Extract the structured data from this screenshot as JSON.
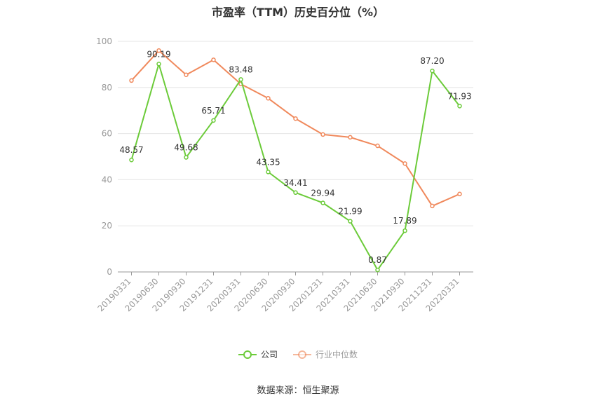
{
  "chart_data": {
    "type": "line",
    "title": "市盈率（TTM）历史百分位（%）",
    "categories": [
      "20190331",
      "20190630",
      "20190930",
      "20191231",
      "20200331",
      "20200630",
      "20200930",
      "20201231",
      "20210331",
      "20210630",
      "20210930",
      "20211231",
      "20220331"
    ],
    "series": [
      {
        "name": "公司",
        "color": "#6ccb3a",
        "values": [
          48.57,
          90.19,
          49.68,
          65.71,
          83.48,
          43.35,
          34.41,
          29.94,
          21.99,
          0.87,
          17.89,
          87.2,
          71.93
        ],
        "labels": [
          "48.57",
          "90.19",
          "49.68",
          "65.71",
          "83.48",
          "43.35",
          "34.41",
          "29.94",
          "21.99",
          "0.87",
          "17.89",
          "87.20",
          "71.93"
        ]
      },
      {
        "name": "行业中位数",
        "color": "#f0895c",
        "values": [
          83.0,
          96.0,
          85.5,
          92.0,
          81.5,
          75.3,
          66.5,
          59.6,
          58.4,
          54.7,
          47.0,
          28.6,
          33.8
        ]
      }
    ],
    "ylim": [
      0,
      100
    ],
    "yticks": [
      0,
      20,
      40,
      60,
      80,
      100
    ],
    "grid": true,
    "legend_position": "bottom"
  },
  "source": "数据来源：恒生聚源"
}
